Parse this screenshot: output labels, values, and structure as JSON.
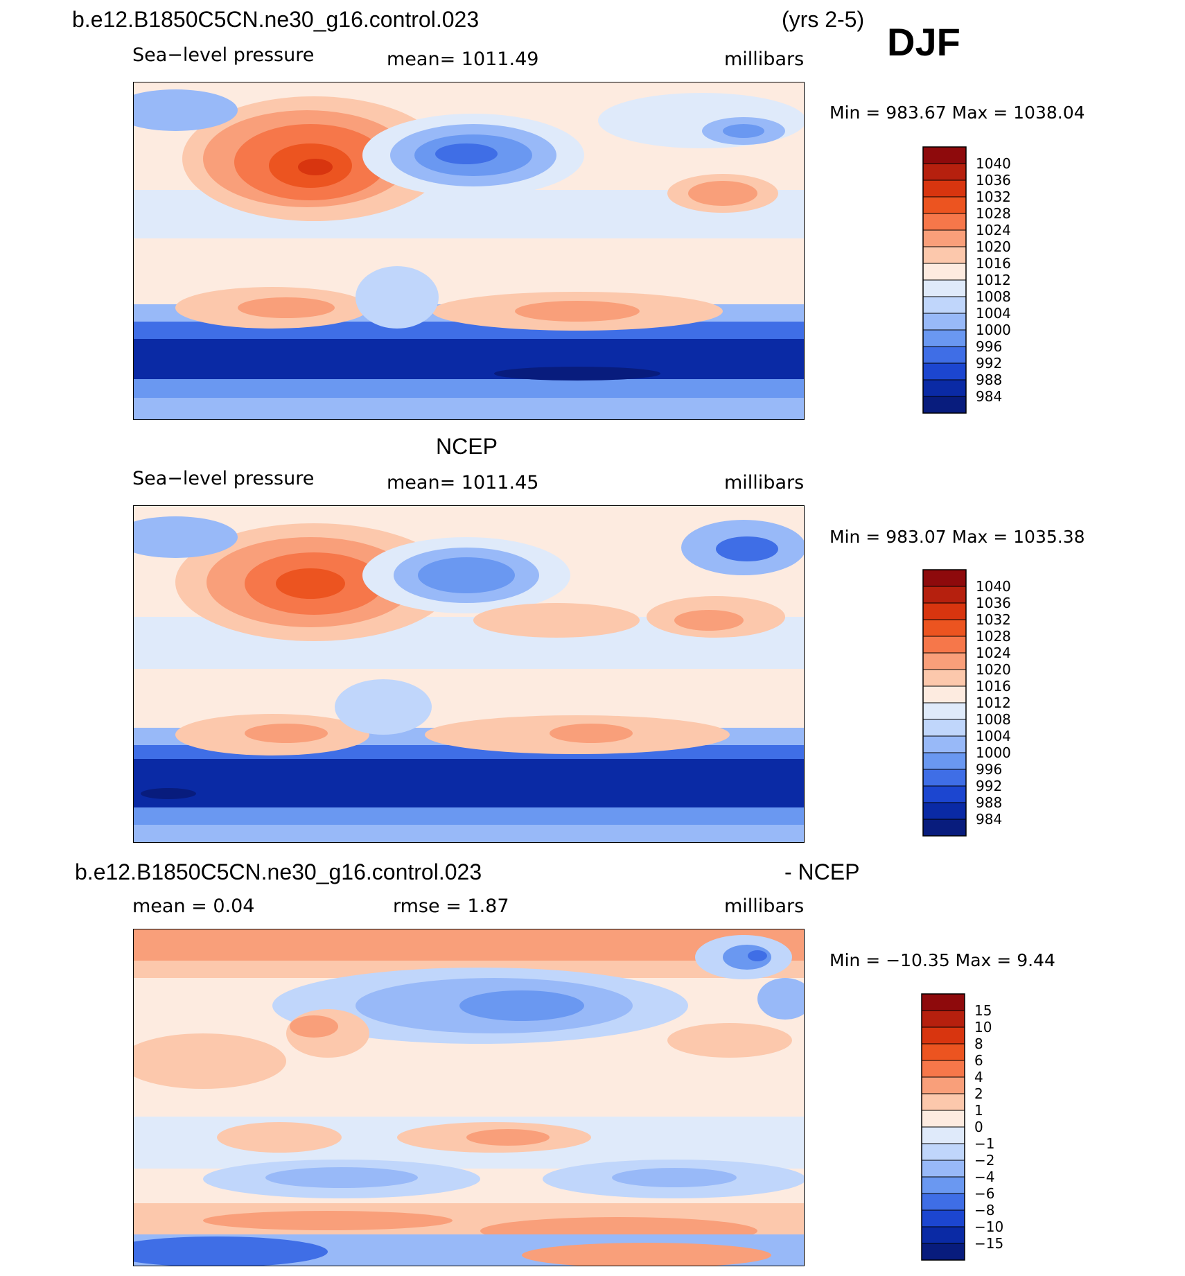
{
  "header": {
    "case_name": "b.e12.B1850C5CN.ne30_g16.control.023",
    "years": "(yrs 2-5)",
    "season": "DJF"
  },
  "panels": [
    {
      "id": "model",
      "variable": "Sea−level pressure",
      "stat": "mean=  1011.49",
      "units": "millibars",
      "minmax": "Min  =  983.67  Max  =  1038.04"
    },
    {
      "id": "obs",
      "title": "NCEP",
      "variable": "Sea−level pressure",
      "stat": "mean=  1011.45",
      "units": "millibars",
      "minmax": "Min  =  983.07  Max  =  1035.38"
    },
    {
      "id": "diff",
      "title_left": "b.e12.B1850C5CN.ne30_g16.control.023",
      "title_right": "- NCEP",
      "mean": "mean  =      0.04",
      "rmse": "rmse  =      1.87",
      "units": "millibars",
      "minmax": "Min  =  −10.35  Max  =      9.44"
    }
  ],
  "chart_data": [
    {
      "type": "heatmap",
      "title": "Sea-level pressure (model)",
      "units": "millibars",
      "mean": 1011.49,
      "min": 983.67,
      "max": 1038.04,
      "colorbar_levels": [
        1040,
        1036,
        1032,
        1028,
        1024,
        1020,
        1016,
        1012,
        1008,
        1004,
        1000,
        996,
        992,
        988,
        984
      ],
      "colorbar_colors": [
        "#8e0a0c",
        "#b6200e",
        "#d8350f",
        "#ec5420",
        "#f6774a",
        "#f99f7a",
        "#fcc8ac",
        "#fdebe0",
        "#dfeafa",
        "#c0d6fb",
        "#98b9f8",
        "#6a98f1",
        "#3f6ee6",
        "#1c46d0",
        "#0a2aa5",
        "#081c7d"
      ]
    },
    {
      "type": "heatmap",
      "title": "Sea-level pressure (NCEP)",
      "units": "millibars",
      "mean": 1011.45,
      "min": 983.07,
      "max": 1035.38,
      "colorbar_levels": [
        1040,
        1036,
        1032,
        1028,
        1024,
        1020,
        1016,
        1012,
        1008,
        1004,
        1000,
        996,
        992,
        988,
        984
      ],
      "colorbar_colors": [
        "#8e0a0c",
        "#b6200e",
        "#d8350f",
        "#ec5420",
        "#f6774a",
        "#f99f7a",
        "#fcc8ac",
        "#fdebe0",
        "#dfeafa",
        "#c0d6fb",
        "#98b9f8",
        "#6a98f1",
        "#3f6ee6",
        "#1c46d0",
        "#0a2aa5",
        "#081c7d"
      ]
    },
    {
      "type": "heatmap",
      "title": "Model - NCEP difference",
      "units": "millibars",
      "mean": 0.04,
      "rmse": 1.87,
      "min": -10.35,
      "max": 9.44,
      "colorbar_levels": [
        "15",
        "10",
        "8",
        "6",
        "4",
        "2",
        "1",
        "0",
        "−1",
        "−2",
        "−4",
        "−6",
        "−8",
        "−10",
        "−15"
      ],
      "colorbar_colors": [
        "#8e0a0c",
        "#b6200e",
        "#d8350f",
        "#ec5420",
        "#f6774a",
        "#f99f7a",
        "#fcc8ac",
        "#fdebe0",
        "#dfeafa",
        "#c0d6fb",
        "#98b9f8",
        "#6a98f1",
        "#3f6ee6",
        "#1c46d0",
        "#0a2aa5",
        "#081c7d"
      ]
    }
  ]
}
